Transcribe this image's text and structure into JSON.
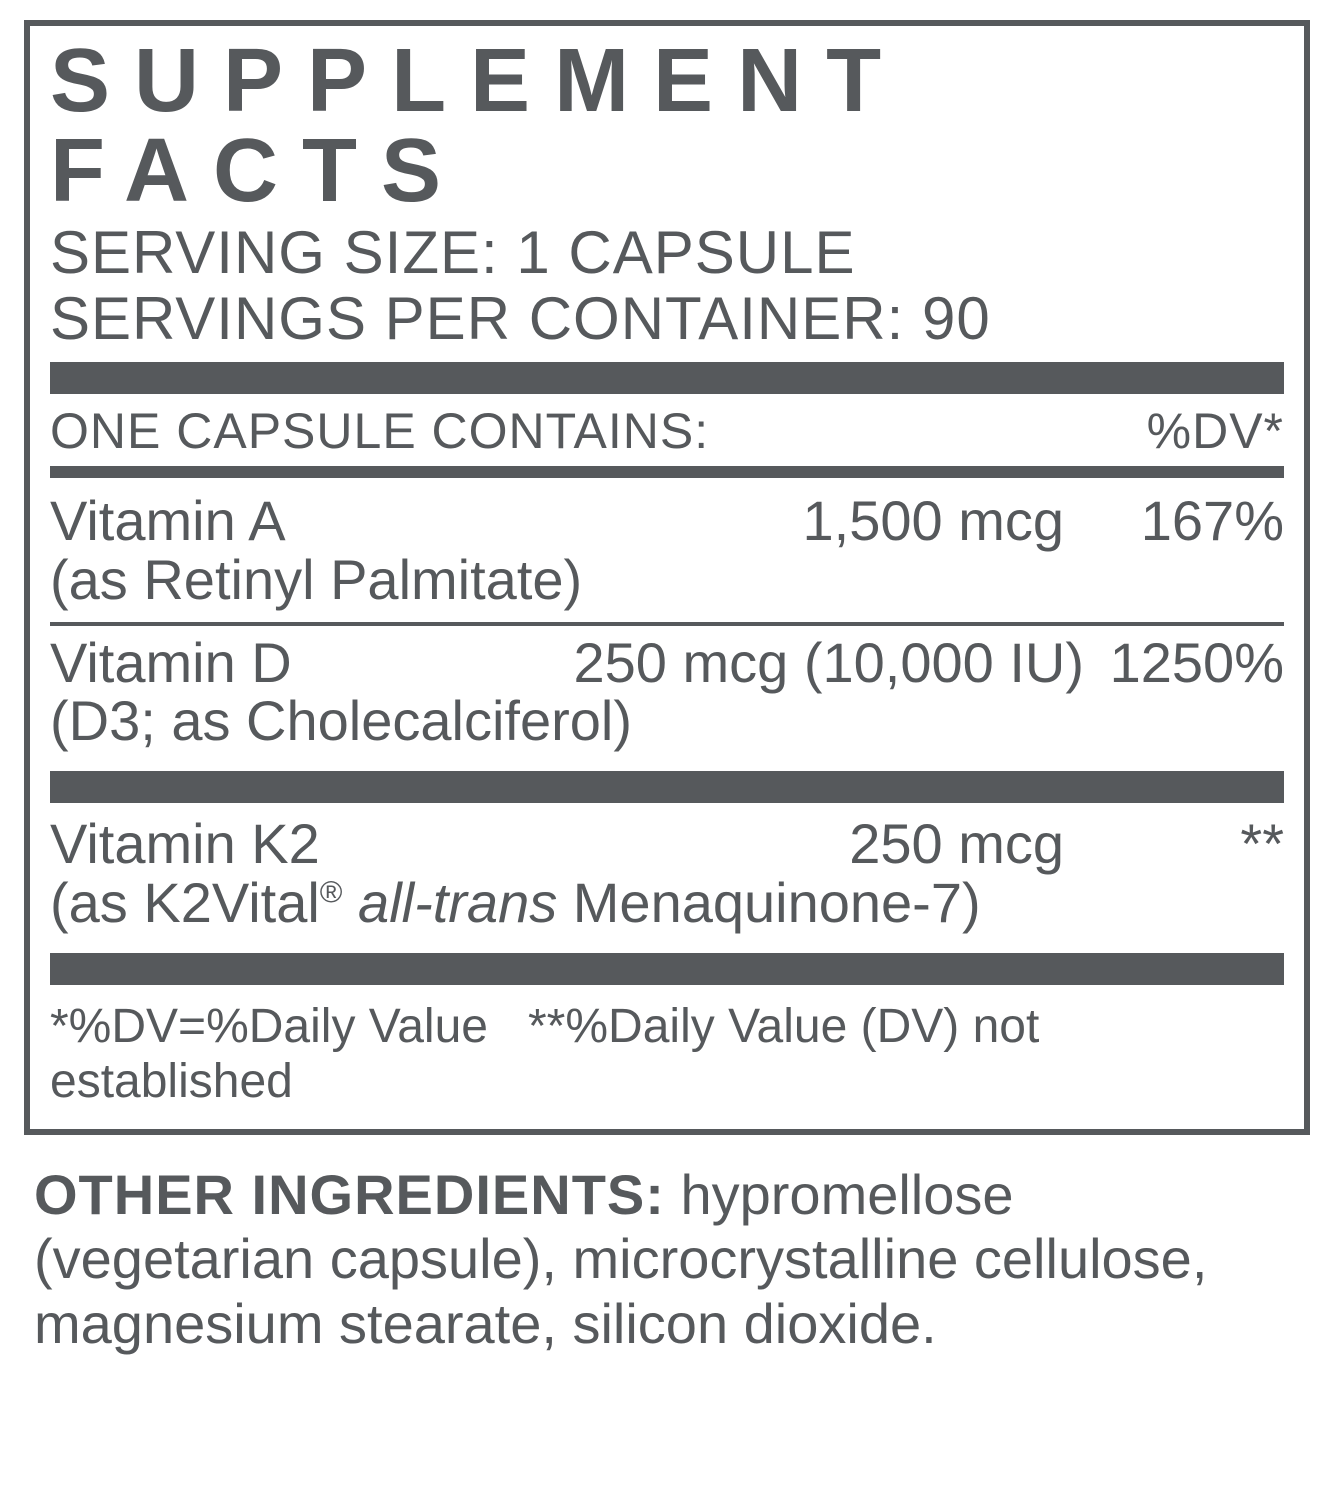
{
  "title": "SUPPLEMENT FACTS",
  "serving_size_label": "SERVING SIZE:",
  "serving_size_value": "1 CAPSULE",
  "servings_per_container_label": "SERVINGS PER CONTAINER:",
  "servings_per_container_value": "90",
  "column_header_left": "ONE CAPSULE CONTAINS:",
  "column_header_right": "%DV*",
  "nutrients": [
    {
      "name": "Vitamin A",
      "amount": "1,500 mcg",
      "dv": "167%",
      "sub_plain": "(as Retinyl Palmitate)"
    },
    {
      "name": "Vitamin D",
      "amount": "250 mcg (10,000 IU)",
      "dv": "1250%",
      "sub_plain": "(D3; as Cholecalciferol)"
    },
    {
      "name": "Vitamin K2",
      "amount": "250 mcg",
      "dv": "**",
      "sub_prefix": "(as K2Vital",
      "sub_reg": "®",
      "sub_italic": " all-trans",
      "sub_suffix": " Menaquinone-7)"
    }
  ],
  "footnote1": "*%DV=%Daily Value",
  "footnote2": "**%Daily Value (DV) not established",
  "other_label": "OTHER INGREDIENTS:",
  "other_text": " hypromellose (vegetarian capsule), microcrystalline cellulose, magnesium stearate, silicon dioxide.",
  "colors": {
    "text": "#56595c",
    "bar": "#56595c",
    "background": "#ffffff"
  }
}
